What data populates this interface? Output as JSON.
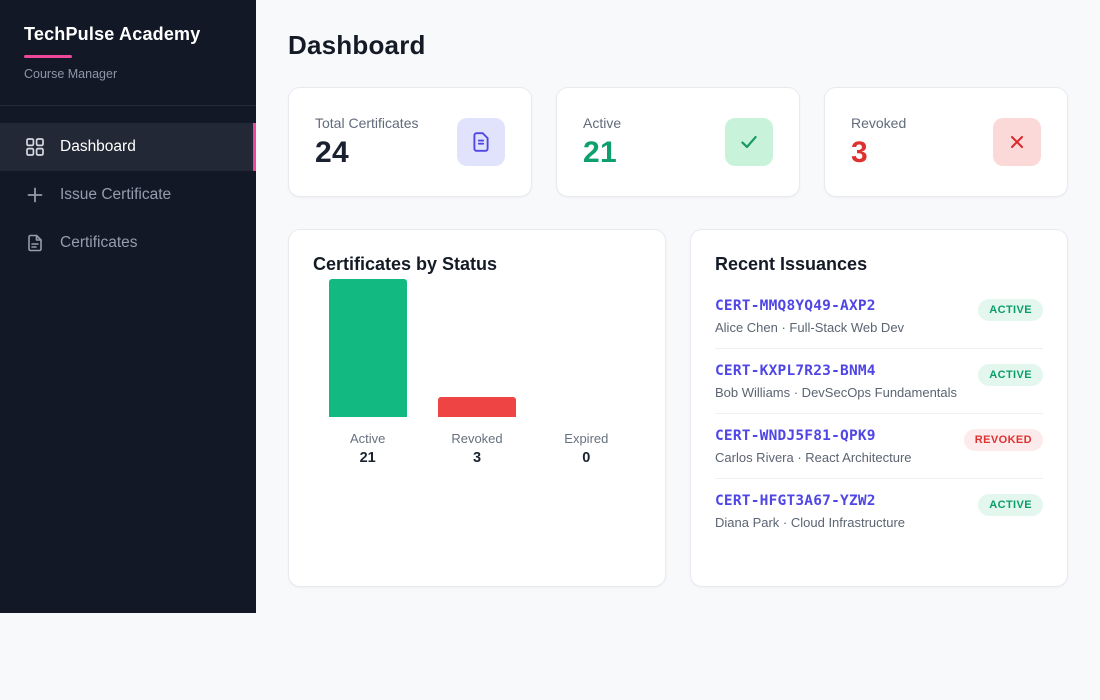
{
  "sidebar": {
    "brand_title": "TechPulse Academy",
    "brand_subtitle": "Course Manager",
    "accent_color": "#ec4899",
    "nav": [
      {
        "label": "Dashboard",
        "icon": "grid-icon",
        "active": true
      },
      {
        "label": "Issue Certificate",
        "icon": "plus-icon",
        "active": false
      },
      {
        "label": "Certificates",
        "icon": "file-icon",
        "active": false
      }
    ]
  },
  "header": {
    "title": "Dashboard"
  },
  "stats": [
    {
      "label": "Total Certificates",
      "value": "24",
      "value_color": "#1a2130",
      "icon": "file-icon",
      "icon_bg": "#e0e3fb",
      "icon_color": "#4f46e5"
    },
    {
      "label": "Active",
      "value": "21",
      "value_color": "#0d9f6e",
      "icon": "check-icon",
      "icon_bg": "#c9f2db",
      "icon_color": "#16995f"
    },
    {
      "label": "Revoked",
      "value": "3",
      "value_color": "#e03131",
      "icon": "x-icon",
      "icon_bg": "#fbd9d9",
      "icon_color": "#dc2626"
    }
  ],
  "chart_panel": {
    "title": "Certificates by Status"
  },
  "chart_data": {
    "type": "bar",
    "title": "Certificates by Status",
    "categories": [
      "Active",
      "Revoked",
      "Expired"
    ],
    "values": [
      21,
      3,
      0
    ],
    "colors": [
      "#12b981",
      "#ef4444",
      "#9ca3af"
    ],
    "xlabel": "",
    "ylabel": "",
    "ylim": [
      0,
      21
    ],
    "grid": false,
    "legend": false
  },
  "recent": {
    "title": "Recent Issuances",
    "items": [
      {
        "code": "CERT-MMQ8YQ49-AXP2",
        "meta": "Alice Chen · Full-Stack Web Dev",
        "status": "ACTIVE"
      },
      {
        "code": "CERT-KXPL7R23-BNM4",
        "meta": "Bob Williams · DevSecOps Fundamentals",
        "status": "ACTIVE"
      },
      {
        "code": "CERT-WNDJ5F81-QPK9",
        "meta": "Carlos Rivera · React Architecture",
        "status": "REVOKED"
      },
      {
        "code": "CERT-HFGT3A67-YZW2",
        "meta": "Diana Park · Cloud Infrastructure",
        "status": "ACTIVE"
      }
    ]
  }
}
